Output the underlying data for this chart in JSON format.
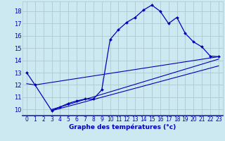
{
  "xlabel": "Graphe des températures (°c)",
  "bg_color": "#cce8f0",
  "line_color": "#0000bb",
  "grid_color": "#b0c8d0",
  "xlim": [
    -0.5,
    23.5
  ],
  "ylim": [
    9.5,
    18.8
  ],
  "yticks": [
    10,
    11,
    12,
    13,
    14,
    15,
    16,
    17,
    18
  ],
  "xticks": [
    0,
    1,
    2,
    3,
    4,
    5,
    6,
    7,
    8,
    9,
    10,
    11,
    12,
    13,
    14,
    15,
    16,
    17,
    18,
    19,
    20,
    21,
    22,
    23
  ],
  "main_x": [
    0,
    1,
    3,
    4,
    5,
    6,
    7,
    8,
    9,
    10,
    11,
    12,
    13,
    14,
    15,
    16,
    17,
    18,
    19,
    20,
    21,
    22,
    23
  ],
  "main_y": [
    13.0,
    12.0,
    9.9,
    10.2,
    10.5,
    10.7,
    10.85,
    10.85,
    11.6,
    15.7,
    16.5,
    17.1,
    17.5,
    18.1,
    18.5,
    18.0,
    17.0,
    17.5,
    16.2,
    15.5,
    15.1,
    14.35,
    14.3
  ],
  "line2_x": [
    0,
    1,
    23
  ],
  "line2_y": [
    12.1,
    12.0,
    14.3
  ],
  "line3_x": [
    3,
    23
  ],
  "line3_y": [
    10.0,
    14.1
  ],
  "line4_x": [
    3,
    23
  ],
  "line4_y": [
    9.9,
    13.55
  ]
}
